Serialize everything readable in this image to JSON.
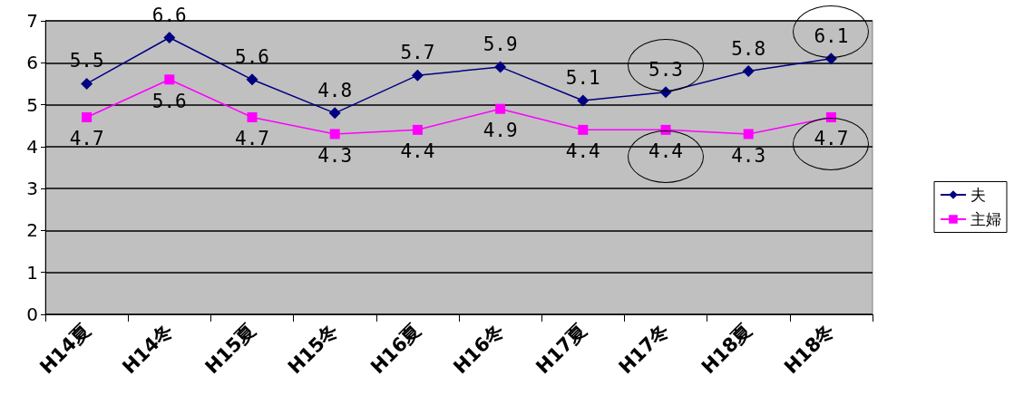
{
  "chart_data": {
    "type": "line",
    "categories": [
      "H14夏",
      "H14冬",
      "H15夏",
      "H15冬",
      "H16夏",
      "H16冬",
      "H17夏",
      "H17冬",
      "H18夏",
      "H18冬"
    ],
    "series": [
      {
        "name": "夫",
        "color": "#000080",
        "marker": "diamond",
        "values": [
          5.5,
          6.6,
          5.6,
          4.8,
          5.7,
          5.9,
          5.1,
          5.3,
          5.8,
          6.1
        ]
      },
      {
        "name": "主婦",
        "color": "#ff00ff",
        "marker": "square",
        "values": [
          4.7,
          5.6,
          4.7,
          4.3,
          4.4,
          4.9,
          4.4,
          4.4,
          4.3,
          4.7
        ]
      }
    ],
    "ylim": [
      0,
      7
    ],
    "yticks": [
      0,
      1,
      2,
      3,
      4,
      5,
      6,
      7
    ],
    "grid": "y",
    "legend": "right",
    "data_labels": true
  }
}
